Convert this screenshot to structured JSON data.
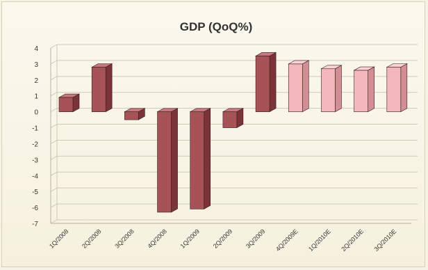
{
  "chart_data": {
    "type": "bar",
    "title": "GDP (QoQ%)",
    "xlabel": "",
    "ylabel": "",
    "categories": [
      "1Q/2008",
      "2Q/2008",
      "3Q/2008",
      "4Q/2008",
      "1Q/2009",
      "2Q/2009",
      "3Q/2009",
      "4Q/2009E",
      "1Q/2010E",
      "2Q/2010E",
      "3Q/2010E"
    ],
    "values": [
      0.9,
      2.8,
      -0.5,
      -6.3,
      -6.1,
      -1.0,
      3.5,
      3.0,
      2.7,
      2.6,
      2.8
    ],
    "kinds": [
      "actual",
      "actual",
      "actual",
      "actual",
      "actual",
      "actual",
      "actual",
      "estimate",
      "estimate",
      "estimate",
      "estimate"
    ],
    "ylim": [
      -7,
      4
    ],
    "yticks": [
      "4",
      "3",
      "2",
      "1",
      "0",
      "-1",
      "-2",
      "-3",
      "-4",
      "-5",
      "-6",
      "-7"
    ],
    "grid": true,
    "legend": "none",
    "colors": {
      "actual_front": "#a65256",
      "actual_side": "#7a3338",
      "actual_top": "#c47a7c",
      "estimate_front": "#f4b8bc",
      "estimate_side": "#d18e93",
      "estimate_top": "#fad3d5",
      "gridline": "#cfc9b8",
      "background": "#f7f3e4"
    }
  }
}
